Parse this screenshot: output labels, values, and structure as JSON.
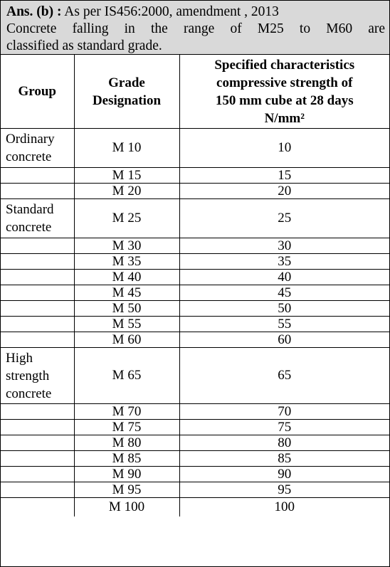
{
  "intro": {
    "answer_tag": "Ans. (b) :",
    "line1_rest": " As per IS456:2000, amendment , 2013",
    "line2": [
      "Concrete",
      "falling",
      "in",
      "the",
      "range",
      "of",
      "M25",
      "to",
      "M60",
      "are"
    ],
    "line3": "classified as standard grade."
  },
  "table": {
    "headers": {
      "group": "Group",
      "grade": [
        "Grade",
        "Designation"
      ],
      "strength": [
        "Specified characteristics",
        "compressive strength of",
        "150 mm cube at 28 days",
        "N/mm²"
      ]
    },
    "rows": [
      {
        "group": [
          "Ordinary",
          "concrete"
        ],
        "grade": "M 10",
        "strength": "10"
      },
      {
        "group": [],
        "grade": "M 15",
        "strength": "15"
      },
      {
        "group": [],
        "grade": "M 20",
        "strength": "20"
      },
      {
        "group": [
          "Standard",
          "concrete"
        ],
        "grade": "M 25",
        "strength": "25"
      },
      {
        "group": [],
        "grade": "M 30",
        "strength": "30"
      },
      {
        "group": [],
        "grade": "M 35",
        "strength": "35"
      },
      {
        "group": [],
        "grade": "M 40",
        "strength": "40"
      },
      {
        "group": [],
        "grade": "M 45",
        "strength": "45"
      },
      {
        "group": [],
        "grade": "M 50",
        "strength": "50"
      },
      {
        "group": [],
        "grade": "M 55",
        "strength": "55"
      },
      {
        "group": [],
        "grade": "M 60",
        "strength": "60"
      },
      {
        "group": [
          "High",
          "strength",
          "concrete"
        ],
        "grade": "M 65",
        "strength": "65"
      },
      {
        "group": [],
        "grade": "M 70",
        "strength": "70"
      },
      {
        "group": [],
        "grade": "M 75",
        "strength": "75"
      },
      {
        "group": [],
        "grade": "M 80",
        "strength": "80"
      },
      {
        "group": [],
        "grade": "M 85",
        "strength": "85"
      },
      {
        "group": [],
        "grade": "M 90",
        "strength": "90"
      },
      {
        "group": [],
        "grade": "M 95",
        "strength": "95"
      },
      {
        "group": [],
        "grade": "M 100",
        "strength": "100"
      }
    ]
  }
}
